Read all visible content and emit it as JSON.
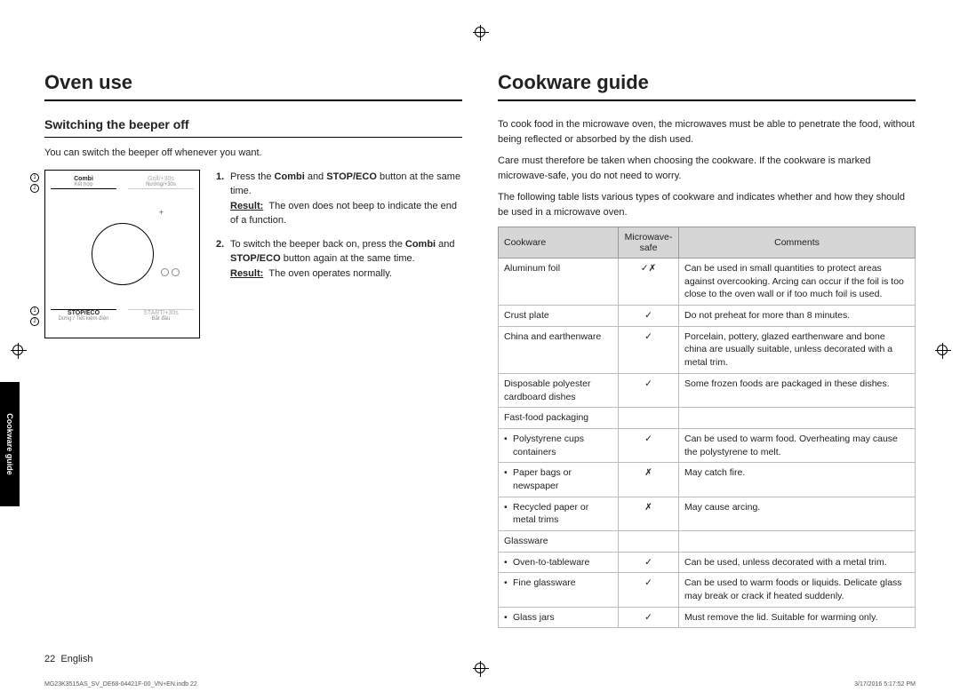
{
  "left": {
    "heading": "Oven use",
    "subheading": "Switching the beeper off",
    "intro": "You can switch the beeper off whenever you want.",
    "panel": {
      "btn1_top": "Combi",
      "btn1_mid": "Kết hợp",
      "btn2_top": "Grill/+30s",
      "btn2_mid": "Nướng/+30s",
      "btn3_top": "STOP/ECO",
      "btn3_mid": "Dừng / Tiết kiệm điện",
      "btn4_top": "START/+30s",
      "btn4_mid": "Bắt đầu",
      "n1": "1",
      "n2": "2"
    },
    "steps": [
      {
        "text_html": "Press the <b>Combi</b> and <b>STOP/ECO</b> button at the same time.",
        "result_label": "Result:",
        "result_text": "The oven does not beep to indicate the end of a function."
      },
      {
        "text_html": "To switch the beeper back on, press the <b>Combi</b> and <b>STOP/ECO</b> button again at the same time.",
        "result_label": "Result:",
        "result_text": "The oven operates normally."
      }
    ],
    "side_tab": "Cookware guide"
  },
  "right": {
    "heading": "Cookware guide",
    "p1": "To cook food in the microwave oven, the microwaves must be able to penetrate the food, without being reflected or absorbed by the dish used.",
    "p2": "Care must therefore be taken when choosing the cookware. If the cookware is marked microwave-safe, you do not need to worry.",
    "p3": "The following table lists various types of cookware and indicates whether and how they should be used in a microwave oven.",
    "headers": {
      "c1": "Cookware",
      "c2": "Microwave-safe",
      "c3": "Comments"
    },
    "rows": [
      {
        "cw": "Aluminum foil",
        "safe": "✓✗",
        "comment": "Can be used in small quantities to protect areas against overcooking. Arcing can occur if the foil is too close to the oven wall or if too much foil is used."
      },
      {
        "cw": "Crust plate",
        "safe": "✓",
        "comment": "Do not preheat for more than 8 minutes."
      },
      {
        "cw": "China and earthenware",
        "safe": "✓",
        "comment": "Porcelain, pottery, glazed earthenware and bone china are usually suitable, unless decorated with a metal trim."
      },
      {
        "cw": "Disposable polyester cardboard dishes",
        "safe": "✓",
        "comment": "Some frozen foods are packaged in these dishes."
      },
      {
        "cw_header": "Fast-food packaging"
      },
      {
        "cw_sub": "Polystyrene cups containers",
        "safe": "✓",
        "comment": "Can be used to warm food. Overheating may cause the polystyrene to melt."
      },
      {
        "cw_sub": "Paper bags or newspaper",
        "safe": "✗",
        "comment": "May catch fire."
      },
      {
        "cw_sub": "Recycled paper or metal trims",
        "safe": "✗",
        "comment": "May cause arcing."
      },
      {
        "cw_header": "Glassware"
      },
      {
        "cw_sub": "Oven-to-tableware",
        "safe": "✓",
        "comment": "Can be used, unless decorated with a metal trim."
      },
      {
        "cw_sub": "Fine glassware",
        "safe": "✓",
        "comment": "Can be used to warm foods or liquids. Delicate glass may break or crack if heated suddenly."
      },
      {
        "cw_sub": "Glass jars",
        "safe": "✓",
        "comment": "Must remove the lid. Suitable for warming only."
      }
    ]
  },
  "footer": {
    "page": "22",
    "lang": "English",
    "file": "MG23K3515AS_SV_DE68-04421F-00_VN+EN.indb   22",
    "ts": "3/17/2016   5:17:52 PM"
  }
}
